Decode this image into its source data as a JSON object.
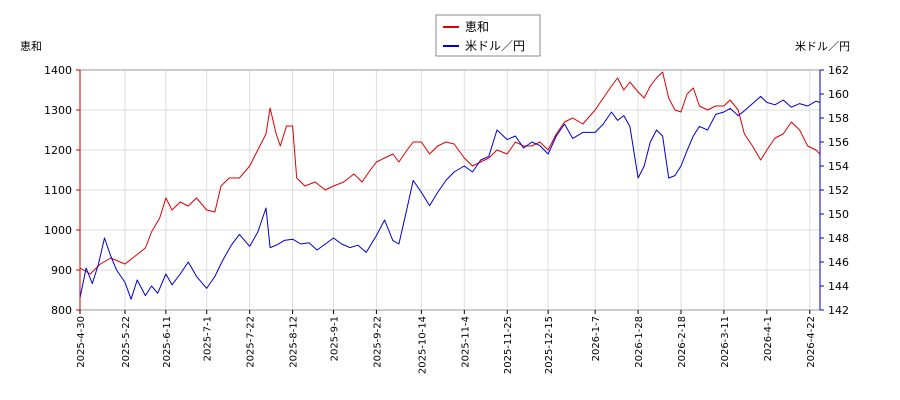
{
  "chart_data": {
    "type": "line",
    "left_axis_title": "恵和",
    "right_axis_title": "米ドル／円",
    "legend": [
      "恵和",
      "米ドル／円"
    ],
    "legend_position": "top-center",
    "grid": true,
    "ylim_left": [
      800,
      1400
    ],
    "ylim_right": [
      142,
      162
    ],
    "yticks_left": [
      "1400",
      "1300",
      "1200",
      "1100",
      "1000",
      "900",
      "800"
    ],
    "yticks_right": [
      "162",
      "160",
      "158",
      "156",
      "154",
      "152",
      "150",
      "148",
      "146",
      "144",
      "142"
    ],
    "x_ticks": [
      "2025-4-30",
      "2025-5-22",
      "2025-6-11",
      "2025-7-1",
      "2025-7-22",
      "2025-8-12",
      "2025-9-1",
      "2025-9-22",
      "2025-10-14",
      "2025-11-4",
      "2025-11-25",
      "2025-12-15",
      "2026-1-7",
      "2026-1-28",
      "2026-2-18",
      "2026-3-11",
      "2026-4-1",
      "2026-4-22"
    ],
    "series": [
      {
        "name": "恵和",
        "axis": "left",
        "color": "#dd0000",
        "points": [
          [
            "2025-4-30",
            905
          ],
          [
            "2025-5-5",
            890
          ],
          [
            "2025-5-10",
            915
          ],
          [
            "2025-5-15",
            930
          ],
          [
            "2025-5-22",
            915
          ],
          [
            "2025-5-27",
            935
          ],
          [
            "2025-6-1",
            955
          ],
          [
            "2025-6-4",
            995
          ],
          [
            "2025-6-8",
            1030
          ],
          [
            "2025-6-11",
            1080
          ],
          [
            "2025-6-14",
            1050
          ],
          [
            "2025-6-18",
            1070
          ],
          [
            "2025-6-22",
            1060
          ],
          [
            "2025-6-26",
            1080
          ],
          [
            "2025-7-1",
            1050
          ],
          [
            "2025-7-5",
            1045
          ],
          [
            "2025-7-8",
            1110
          ],
          [
            "2025-7-12",
            1130
          ],
          [
            "2025-7-17",
            1130
          ],
          [
            "2025-7-22",
            1160
          ],
          [
            "2025-7-26",
            1200
          ],
          [
            "2025-7-30",
            1240
          ],
          [
            "2025-8-1",
            1305
          ],
          [
            "2025-8-4",
            1240
          ],
          [
            "2025-8-6",
            1210
          ],
          [
            "2025-8-9",
            1260
          ],
          [
            "2025-8-12",
            1260
          ],
          [
            "2025-8-14",
            1130
          ],
          [
            "2025-8-18",
            1110
          ],
          [
            "2025-8-23",
            1120
          ],
          [
            "2025-8-28",
            1100
          ],
          [
            "2025-9-1",
            1110
          ],
          [
            "2025-9-6",
            1120
          ],
          [
            "2025-9-11",
            1140
          ],
          [
            "2025-9-15",
            1120
          ],
          [
            "2025-9-19",
            1150
          ],
          [
            "2025-9-22",
            1170
          ],
          [
            "2025-9-26",
            1180
          ],
          [
            "2025-9-30",
            1190
          ],
          [
            "2025-10-3",
            1170
          ],
          [
            "2025-10-7",
            1200
          ],
          [
            "2025-10-10",
            1220
          ],
          [
            "2025-10-14",
            1220
          ],
          [
            "2025-10-18",
            1190
          ],
          [
            "2025-10-22",
            1210
          ],
          [
            "2025-10-26",
            1220
          ],
          [
            "2025-10-30",
            1215
          ],
          [
            "2025-11-4",
            1180
          ],
          [
            "2025-11-8",
            1160
          ],
          [
            "2025-11-12",
            1170
          ],
          [
            "2025-11-16",
            1180
          ],
          [
            "2025-11-20",
            1200
          ],
          [
            "2025-11-25",
            1190
          ],
          [
            "2025-11-29",
            1220
          ],
          [
            "2025-12-3",
            1210
          ],
          [
            "2025-12-7",
            1210
          ],
          [
            "2025-12-11",
            1220
          ],
          [
            "2025-12-15",
            1200
          ],
          [
            "2025-12-19",
            1240
          ],
          [
            "2025-12-23",
            1270
          ],
          [
            "2025-12-27",
            1280
          ],
          [
            "2026-1-1",
            1265
          ],
          [
            "2026-1-7",
            1300
          ],
          [
            "2026-1-11",
            1330
          ],
          [
            "2026-1-15",
            1360
          ],
          [
            "2026-1-18",
            1380
          ],
          [
            "2026-1-21",
            1350
          ],
          [
            "2026-1-24",
            1370
          ],
          [
            "2026-1-28",
            1345
          ],
          [
            "2026-1-31",
            1330
          ],
          [
            "2026-2-3",
            1360
          ],
          [
            "2026-2-6",
            1380
          ],
          [
            "2026-2-9",
            1395
          ],
          [
            "2026-2-12",
            1330
          ],
          [
            "2026-2-15",
            1300
          ],
          [
            "2026-2-18",
            1295
          ],
          [
            "2026-2-21",
            1340
          ],
          [
            "2026-2-24",
            1355
          ],
          [
            "2026-2-27",
            1310
          ],
          [
            "2026-3-3",
            1300
          ],
          [
            "2026-3-7",
            1310
          ],
          [
            "2026-3-11",
            1310
          ],
          [
            "2026-3-14",
            1325
          ],
          [
            "2026-3-18",
            1300
          ],
          [
            "2026-3-21",
            1240
          ],
          [
            "2026-3-25",
            1210
          ],
          [
            "2026-3-29",
            1175
          ],
          [
            "2026-4-1",
            1200
          ],
          [
            "2026-4-5",
            1230
          ],
          [
            "2026-4-9",
            1240
          ],
          [
            "2026-4-13",
            1270
          ],
          [
            "2026-4-17",
            1250
          ],
          [
            "2026-4-21",
            1210
          ],
          [
            "2026-4-25",
            1200
          ],
          [
            "2026-4-27",
            1190
          ]
        ]
      },
      {
        "name": "米ドル／円",
        "axis": "right",
        "color": "#0000cc",
        "points": [
          [
            "2025-4-30",
            143.0
          ],
          [
            "2025-5-3",
            145.5
          ],
          [
            "2025-5-6",
            144.2
          ],
          [
            "2025-5-9",
            145.8
          ],
          [
            "2025-5-12",
            148.0
          ],
          [
            "2025-5-15",
            146.5
          ],
          [
            "2025-5-18",
            145.3
          ],
          [
            "2025-5-22",
            144.3
          ],
          [
            "2025-5-25",
            142.9
          ],
          [
            "2025-5-28",
            144.5
          ],
          [
            "2025-6-1",
            143.2
          ],
          [
            "2025-6-4",
            144.0
          ],
          [
            "2025-6-7",
            143.4
          ],
          [
            "2025-6-11",
            145.0
          ],
          [
            "2025-6-14",
            144.1
          ],
          [
            "2025-6-18",
            145.0
          ],
          [
            "2025-6-22",
            146.0
          ],
          [
            "2025-6-26",
            144.8
          ],
          [
            "2025-7-1",
            143.8
          ],
          [
            "2025-7-5",
            144.8
          ],
          [
            "2025-7-9",
            146.2
          ],
          [
            "2025-7-13",
            147.4
          ],
          [
            "2025-7-17",
            148.3
          ],
          [
            "2025-7-22",
            147.3
          ],
          [
            "2025-7-26",
            148.5
          ],
          [
            "2025-7-30",
            150.5
          ],
          [
            "2025-8-1",
            147.2
          ],
          [
            "2025-8-4",
            147.4
          ],
          [
            "2025-8-8",
            147.8
          ],
          [
            "2025-8-12",
            147.9
          ],
          [
            "2025-8-16",
            147.5
          ],
          [
            "2025-8-20",
            147.6
          ],
          [
            "2025-8-24",
            147.0
          ],
          [
            "2025-8-28",
            147.5
          ],
          [
            "2025-9-1",
            148.0
          ],
          [
            "2025-9-5",
            147.5
          ],
          [
            "2025-9-9",
            147.2
          ],
          [
            "2025-9-13",
            147.4
          ],
          [
            "2025-9-17",
            146.8
          ],
          [
            "2025-9-22",
            148.2
          ],
          [
            "2025-9-26",
            149.5
          ],
          [
            "2025-9-30",
            147.8
          ],
          [
            "2025-10-3",
            147.5
          ],
          [
            "2025-10-7",
            150.5
          ],
          [
            "2025-10-10",
            152.8
          ],
          [
            "2025-10-14",
            151.8
          ],
          [
            "2025-10-18",
            150.7
          ],
          [
            "2025-10-22",
            151.8
          ],
          [
            "2025-10-26",
            152.8
          ],
          [
            "2025-10-30",
            153.5
          ],
          [
            "2025-11-4",
            154.0
          ],
          [
            "2025-11-8",
            153.5
          ],
          [
            "2025-11-12",
            154.5
          ],
          [
            "2025-11-16",
            154.8
          ],
          [
            "2025-11-20",
            157.0
          ],
          [
            "2025-11-25",
            156.2
          ],
          [
            "2025-11-29",
            156.5
          ],
          [
            "2025-12-3",
            155.5
          ],
          [
            "2025-12-7",
            156.0
          ],
          [
            "2025-12-11",
            155.7
          ],
          [
            "2025-12-15",
            155.0
          ],
          [
            "2025-12-19",
            156.5
          ],
          [
            "2025-12-23",
            157.5
          ],
          [
            "2025-12-27",
            156.3
          ],
          [
            "2026-1-1",
            156.8
          ],
          [
            "2026-1-7",
            156.8
          ],
          [
            "2026-1-11",
            157.5
          ],
          [
            "2026-1-15",
            158.5
          ],
          [
            "2026-1-18",
            157.8
          ],
          [
            "2026-1-21",
            158.2
          ],
          [
            "2026-1-24",
            157.3
          ],
          [
            "2026-1-28",
            153.0
          ],
          [
            "2026-1-31",
            154.0
          ],
          [
            "2026-2-3",
            156.0
          ],
          [
            "2026-2-6",
            157.0
          ],
          [
            "2026-2-9",
            156.5
          ],
          [
            "2026-2-12",
            153.0
          ],
          [
            "2026-2-15",
            153.2
          ],
          [
            "2026-2-18",
            154.0
          ],
          [
            "2026-2-21",
            155.3
          ],
          [
            "2026-2-24",
            156.5
          ],
          [
            "2026-2-27",
            157.3
          ],
          [
            "2026-3-3",
            157.0
          ],
          [
            "2026-3-7",
            158.3
          ],
          [
            "2026-3-11",
            158.5
          ],
          [
            "2026-3-14",
            158.8
          ],
          [
            "2026-3-18",
            158.2
          ],
          [
            "2026-3-21",
            158.6
          ],
          [
            "2026-3-25",
            159.2
          ],
          [
            "2026-3-29",
            159.8
          ],
          [
            "2026-4-1",
            159.3
          ],
          [
            "2026-4-5",
            159.1
          ],
          [
            "2026-4-9",
            159.5
          ],
          [
            "2026-4-13",
            158.9
          ],
          [
            "2026-4-17",
            159.2
          ],
          [
            "2026-4-21",
            159.0
          ],
          [
            "2026-4-25",
            159.4
          ],
          [
            "2026-4-27",
            159.3
          ]
        ]
      }
    ]
  }
}
